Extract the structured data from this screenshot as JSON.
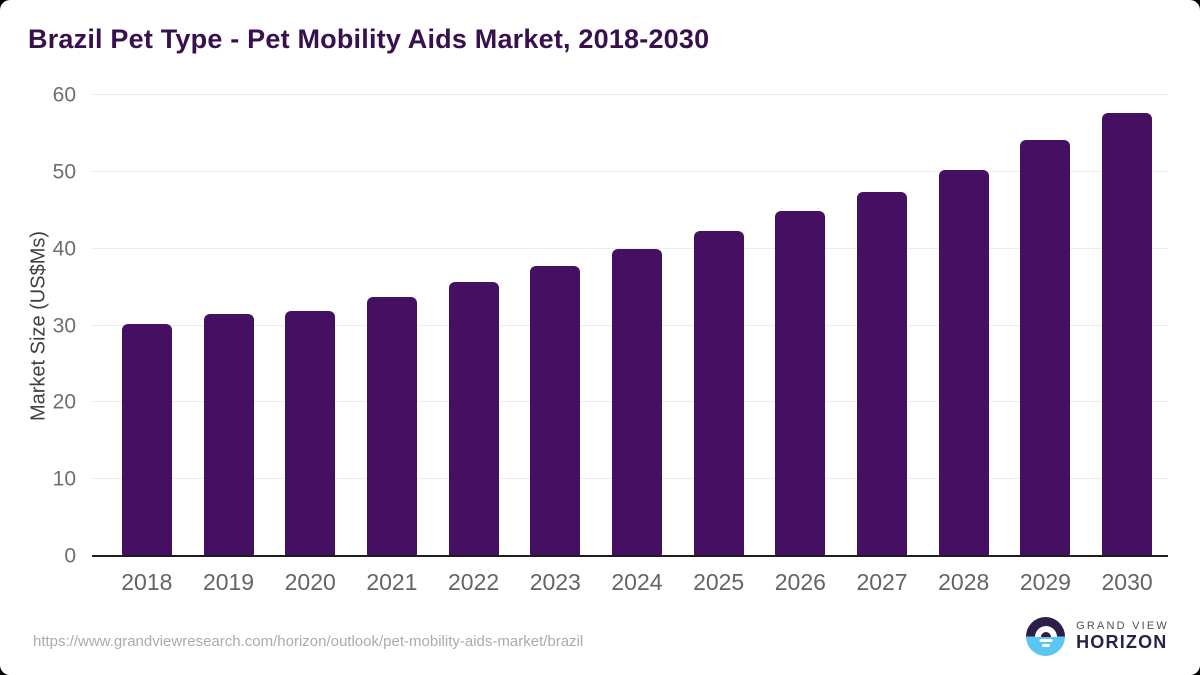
{
  "chart_data": {
    "type": "bar",
    "title": "Brazil Pet Type - Pet Mobility Aids Market, 2018-2030",
    "categories": [
      "2018",
      "2019",
      "2020",
      "2021",
      "2022",
      "2023",
      "2024",
      "2025",
      "2026",
      "2027",
      "2028",
      "2029",
      "2030"
    ],
    "values": [
      30.2,
      31.5,
      31.9,
      33.7,
      35.6,
      37.8,
      40.0,
      42.3,
      44.9,
      47.4,
      50.2,
      54.2,
      57.6
    ],
    "xlabel": "",
    "ylabel": "Market Size (US$Ms)",
    "ylim": [
      0,
      60
    ],
    "yticks": [
      0,
      10,
      20,
      30,
      40,
      50,
      60
    ],
    "grid": "horizontal",
    "legend": "none",
    "bar_color": "#451061"
  },
  "colors": {
    "title_text": "#38104d",
    "bar": "#451061",
    "axis_tick_text": "#6e6e6e",
    "gridline": "#ececec",
    "logo_dark": "#2d1d49",
    "logo_blue": "#5bc6f0"
  },
  "footer": {
    "source_url": "https://www.grandviewresearch.com/horizon/outlook/pet-mobility-aids-market/brazil",
    "logo": {
      "brand_line1": "GRAND VIEW",
      "brand_line2": "HORIZON"
    }
  }
}
